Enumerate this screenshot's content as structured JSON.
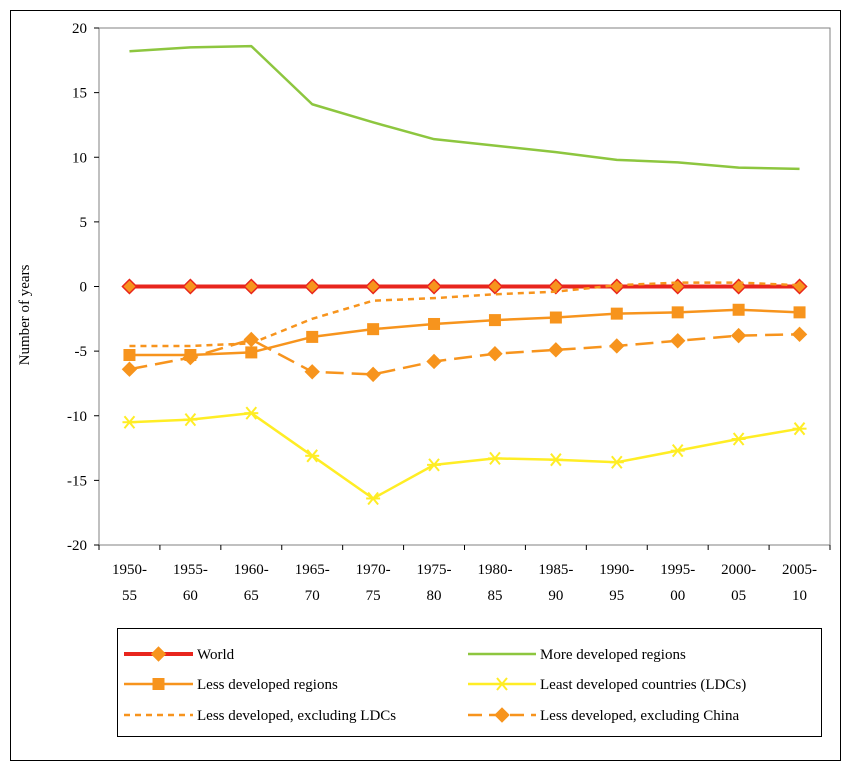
{
  "chart_data": {
    "type": "line",
    "ylabel": "Number of years",
    "ylim": [
      -20,
      20
    ],
    "yticks": [
      20,
      15,
      10,
      5,
      0,
      -5,
      -10,
      -15,
      -20
    ],
    "grid": false,
    "legend_placement": "bottom",
    "categories": [
      [
        "1950-",
        "55"
      ],
      [
        "1955-",
        "60"
      ],
      [
        "1960-",
        "65"
      ],
      [
        "1965-",
        "70"
      ],
      [
        "1970-",
        "75"
      ],
      [
        "1975-",
        "80"
      ],
      [
        "1980-",
        "85"
      ],
      [
        "1985-",
        "90"
      ],
      [
        "1990-",
        "95"
      ],
      [
        "1995-",
        "00"
      ],
      [
        "2000-",
        "05"
      ],
      [
        "2005-",
        "10"
      ]
    ],
    "series": [
      {
        "name": "World",
        "color": "#e8251d",
        "marker": "diamond",
        "dash": "solid",
        "width": 4,
        "values": [
          0,
          0,
          0,
          0,
          0,
          0,
          0,
          0,
          0,
          0,
          0,
          0
        ]
      },
      {
        "name": "More developed regions",
        "color": "#8dc63f",
        "marker": "none",
        "dash": "solid",
        "width": 2.5,
        "values": [
          18.2,
          18.5,
          18.6,
          14.1,
          12.7,
          11.4,
          10.9,
          10.4,
          9.8,
          9.6,
          9.2,
          9.1
        ]
      },
      {
        "name": "Less developed regions",
        "color": "#f7941d",
        "marker": "square",
        "dash": "solid",
        "width": 2.5,
        "values": [
          -5.3,
          -5.3,
          -5.1,
          -3.9,
          -3.3,
          -2.9,
          -2.6,
          -2.4,
          -2.1,
          -2.0,
          -1.8,
          -2.0
        ]
      },
      {
        "name": "Least developed countries (LDCs)",
        "color": "#ffed25",
        "marker": "asterisk",
        "dash": "solid",
        "width": 2.5,
        "values": [
          -10.5,
          -10.3,
          -9.8,
          -13.1,
          -16.4,
          -13.8,
          -13.3,
          -13.4,
          -13.6,
          -12.7,
          -11.8,
          -11.0
        ]
      },
      {
        "name": "Less developed, excluding LDCs",
        "color": "#f7941d",
        "marker": "none",
        "dash": "short",
        "width": 2.5,
        "values": [
          -4.6,
          -4.6,
          -4.4,
          -2.5,
          -1.1,
          -0.9,
          -0.6,
          -0.4,
          0.1,
          0.3,
          0.3,
          0.1
        ]
      },
      {
        "name": "Less developed, excluding China",
        "color": "#f7941d",
        "marker": "diamond",
        "dash": "long",
        "width": 2.5,
        "values": [
          -6.4,
          -5.5,
          -4.1,
          -6.6,
          -6.8,
          -5.8,
          -5.2,
          -4.9,
          -4.6,
          -4.2,
          -3.8,
          -3.7
        ]
      }
    ]
  }
}
